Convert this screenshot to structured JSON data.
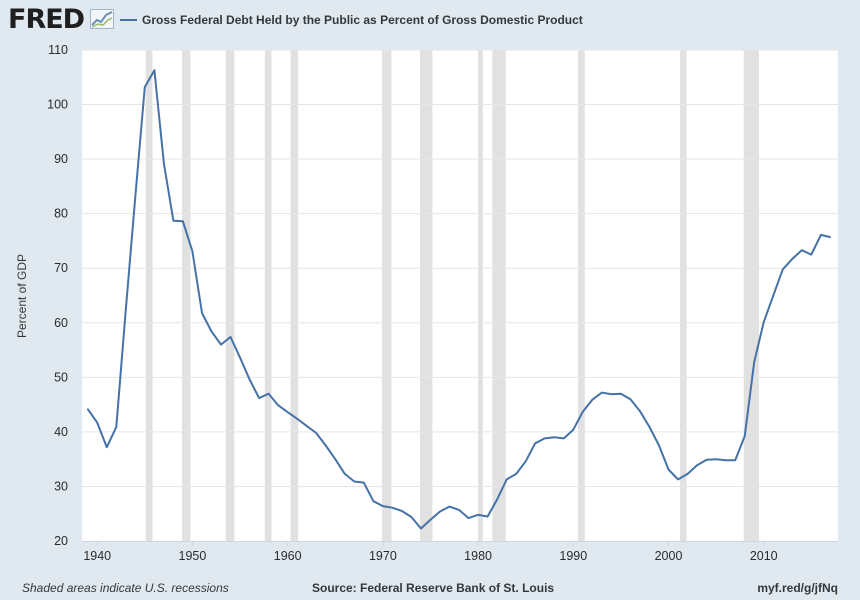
{
  "header": {
    "logo_text": "FRED",
    "logo_icon": "line-graph-icon",
    "legend_label": "Gross Federal Debt Held by the Public as Percent of Gross Domestic Product"
  },
  "footer": {
    "note": "Shaded areas indicate U.S. recessions",
    "source": "Source: Federal Reserve Bank of St. Louis",
    "short_link": "myf.red/g/jfNq"
  },
  "colors": {
    "page_background": "#e1e9f0",
    "plot_background": "#ffffff",
    "series_line": "#4572a7",
    "recession_shade": "#e1e1e1",
    "grid": "#e6e6e6"
  },
  "chart_data": {
    "type": "line",
    "title": "",
    "xlabel": "",
    "ylabel": "Percent of GDP",
    "xlim": [
      1938.4,
      2017.8
    ],
    "ylim": [
      20,
      110
    ],
    "xticks": [
      1940,
      1950,
      1960,
      1970,
      1980,
      1990,
      2000,
      2010
    ],
    "yticks": [
      20,
      30,
      40,
      50,
      60,
      70,
      80,
      90,
      100,
      110
    ],
    "grid": "horizontal",
    "legend": "top",
    "recessions": [
      [
        1945.1,
        1945.8
      ],
      [
        1948.9,
        1949.8
      ],
      [
        1953.5,
        1954.4
      ],
      [
        1957.6,
        1958.3
      ],
      [
        1960.3,
        1961.1
      ],
      [
        1969.9,
        1970.9
      ],
      [
        1973.9,
        1975.2
      ],
      [
        1980.0,
        1980.5
      ],
      [
        1981.5,
        1982.9
      ],
      [
        1990.5,
        1991.2
      ],
      [
        2001.2,
        2001.9
      ],
      [
        2007.9,
        2009.5
      ]
    ],
    "series": [
      {
        "name": "Gross Federal Debt Held by the Public as Percent of Gross Domestic Product",
        "x": [
          1939,
          1940,
          1941,
          1942,
          1943,
          1944,
          1945,
          1946,
          1947,
          1948,
          1949,
          1950,
          1951,
          1952,
          1953,
          1954,
          1955,
          1956,
          1957,
          1958,
          1959,
          1960,
          1961,
          1962,
          1963,
          1964,
          1965,
          1966,
          1967,
          1968,
          1969,
          1970,
          1971,
          1972,
          1973,
          1974,
          1975,
          1976,
          1977,
          1978,
          1979,
          1980,
          1981,
          1982,
          1983,
          1984,
          1985,
          1986,
          1987,
          1988,
          1989,
          1990,
          1991,
          1992,
          1993,
          1994,
          1995,
          1996,
          1997,
          1998,
          1999,
          2000,
          2001,
          2002,
          2003,
          2004,
          2005,
          2006,
          2007,
          2008,
          2009,
          2010,
          2011,
          2012,
          2013,
          2014,
          2015,
          2016,
          2017
        ],
        "y": [
          44.2,
          41.7,
          37.2,
          40.9,
          62.4,
          83.1,
          103.2,
          106.3,
          89.2,
          78.7,
          78.6,
          73.1,
          61.8,
          58.4,
          56.0,
          57.4,
          53.6,
          49.6,
          46.2,
          47.0,
          44.9,
          43.6,
          42.4,
          41.1,
          39.8,
          37.5,
          35.0,
          32.3,
          30.9,
          30.7,
          27.3,
          26.4,
          26.1,
          25.5,
          24.4,
          22.3,
          23.9,
          25.4,
          26.3,
          25.7,
          24.2,
          24.8,
          24.5,
          27.6,
          31.3,
          32.3,
          34.6,
          37.9,
          38.8,
          39.0,
          38.8,
          40.4,
          43.7,
          45.9,
          47.2,
          46.9,
          47.0,
          46.0,
          43.8,
          40.9,
          37.5,
          33.1,
          31.3,
          32.3,
          33.9,
          34.9,
          35.0,
          34.8,
          34.8,
          39.2,
          52.8,
          60.1,
          65.0,
          69.8,
          71.7,
          73.3,
          72.5,
          76.1,
          75.7
        ]
      }
    ]
  }
}
